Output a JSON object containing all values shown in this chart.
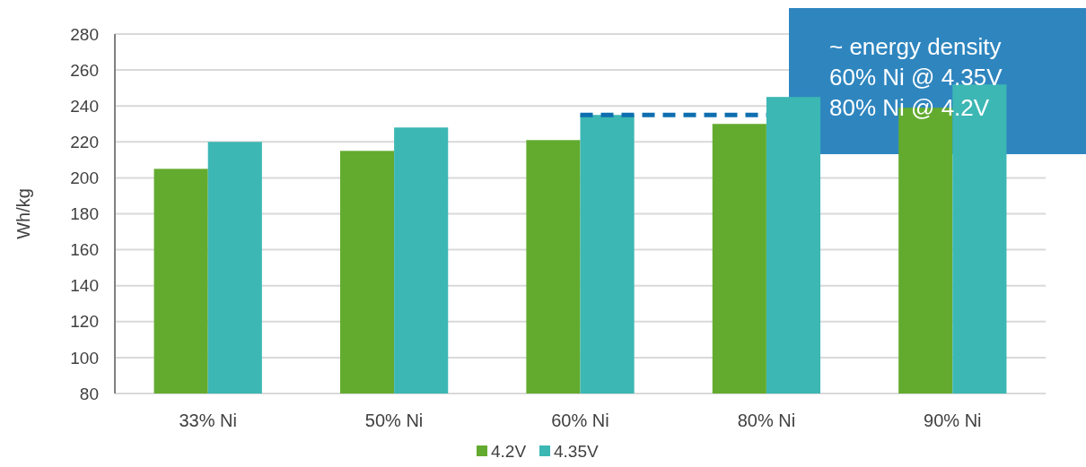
{
  "chart_data": {
    "type": "bar",
    "ylabel": "Wh/kg",
    "categories": [
      "33% Ni",
      "50% Ni",
      "60% Ni",
      "80% Ni",
      "90% Ni"
    ],
    "series": [
      {
        "name": "4.2V",
        "color": "#63ab2f",
        "values": [
          205,
          215,
          221,
          230,
          239
        ]
      },
      {
        "name": "4.35V",
        "color": "#3cb7b4",
        "values": [
          220,
          228,
          235,
          245,
          252
        ]
      },
      {
        "type": "line",
        "color": "#0e6eb0",
        "line_style": "dashed",
        "values": [
          null,
          null,
          235,
          235,
          null
        ]
      }
    ],
    "ylim": [
      80,
      280
    ],
    "yticks": [
      80,
      100,
      120,
      140,
      160,
      180,
      200,
      220,
      240,
      260,
      280
    ],
    "grid": "y",
    "legend": "bottom",
    "annotations": [
      "~ energy density\n60% Ni @ 4.35V\n80% Ni @ 4.2V"
    ]
  }
}
